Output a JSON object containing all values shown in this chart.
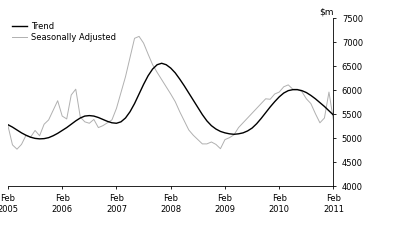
{
  "ylim": [
    4000,
    7500
  ],
  "yticks": [
    4000,
    4500,
    5000,
    5500,
    6000,
    6500,
    7000,
    7500
  ],
  "xtick_labels": [
    "Feb\n2005",
    "Feb\n2006",
    "Feb\n2007",
    "Feb\n2008",
    "Feb\n2009",
    "Feb\n2010",
    "Feb\n2011"
  ],
  "trend_color": "#000000",
  "seasonal_color": "#b0b0b0",
  "legend_trend": "Trend",
  "legend_seasonal": "Seasonally Adjusted",
  "background_color": "#ffffff",
  "trend_y": [
    5280,
    5230,
    5170,
    5110,
    5060,
    5020,
    4995,
    4985,
    4990,
    5010,
    5050,
    5100,
    5160,
    5220,
    5290,
    5360,
    5420,
    5460,
    5470,
    5460,
    5430,
    5390,
    5350,
    5320,
    5310,
    5340,
    5420,
    5550,
    5720,
    5920,
    6120,
    6300,
    6440,
    6530,
    6560,
    6530,
    6460,
    6360,
    6230,
    6090,
    5940,
    5790,
    5640,
    5490,
    5360,
    5260,
    5190,
    5140,
    5110,
    5090,
    5080,
    5090,
    5110,
    5150,
    5210,
    5300,
    5410,
    5530,
    5650,
    5760,
    5860,
    5940,
    5990,
    6010,
    6010,
    5990,
    5950,
    5890,
    5820,
    5740,
    5660,
    5570,
    5480
  ],
  "seasonal_y": [
    5260,
    4860,
    4770,
    4870,
    5060,
    5020,
    5160,
    5050,
    5290,
    5380,
    5580,
    5780,
    5460,
    5400,
    5900,
    6020,
    5440,
    5340,
    5310,
    5390,
    5220,
    5260,
    5320,
    5380,
    5620,
    5950,
    6280,
    6680,
    7080,
    7120,
    6980,
    6750,
    6530,
    6370,
    6220,
    6070,
    5920,
    5760,
    5550,
    5360,
    5170,
    5060,
    4970,
    4880,
    4880,
    4920,
    4870,
    4780,
    4970,
    5010,
    5070,
    5220,
    5320,
    5420,
    5520,
    5620,
    5720,
    5820,
    5810,
    5920,
    5960,
    6070,
    6110,
    6020,
    6020,
    5970,
    5820,
    5720,
    5510,
    5320,
    5420,
    5960,
    5370
  ]
}
